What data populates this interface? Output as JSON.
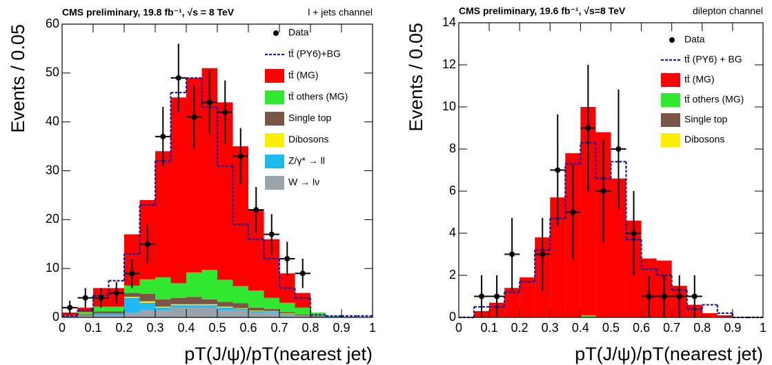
{
  "chart_data": [
    {
      "type": "histogram",
      "title": "CMS preliminary, 19.8 fb⁻¹, √s = 8 TeV",
      "subtitle": "l + jets channel",
      "x_label": "pT(J/ψ)/pT(nearest jet)",
      "y_label": "Events / 0.05",
      "bins": [
        0,
        0.05,
        0.1,
        0.15,
        0.2,
        0.25,
        0.3,
        0.35,
        0.4,
        0.45,
        0.5,
        0.55,
        0.6,
        0.65,
        0.7,
        0.75,
        0.8,
        0.85,
        0.9,
        0.95,
        1
      ],
      "xlim": [
        0,
        1
      ],
      "xticks": [
        0,
        0.1,
        0.2,
        0.3,
        0.4,
        0.5,
        0.6,
        0.7,
        0.8,
        0.9,
        1
      ],
      "ylim": [
        0,
        60
      ],
      "yticks": [
        0,
        10,
        20,
        30,
        40,
        50,
        60
      ],
      "series": [
        {
          "name": "W → lν",
          "color": "#99a4ad",
          "values": [
            0.1,
            0.3,
            0.5,
            0.5,
            1,
            1.5,
            1.5,
            2,
            2,
            2,
            1.5,
            1.5,
            1,
            1,
            0.5,
            0.3,
            0.2,
            0.1,
            0,
            0
          ]
        },
        {
          "name": "Z/γ* → ll",
          "color": "#1fb8ef",
          "values": [
            0.1,
            0.1,
            0.3,
            0.3,
            3,
            1.5,
            0.5,
            0.5,
            0.5,
            0.5,
            0.5,
            0.3,
            0.3,
            0.2,
            0.2,
            0.1,
            0,
            0,
            0,
            0
          ]
        },
        {
          "name": "Dibosons",
          "color": "#ffee00",
          "values": [
            0,
            0,
            0,
            0,
            0.2,
            0.3,
            0.2,
            0.2,
            0.2,
            0.2,
            0.2,
            0.1,
            0.1,
            0.1,
            0.1,
            0,
            0,
            0,
            0,
            0
          ]
        },
        {
          "name": "Single top",
          "color": "#7b5646",
          "values": [
            0.1,
            0.2,
            0.4,
            0.4,
            0.8,
            1.5,
            1.5,
            1.3,
            1.5,
            1,
            1,
            1,
            0.6,
            0.4,
            0.3,
            0.2,
            0.1,
            0,
            0,
            0
          ]
        },
        {
          "name": "tt̄ others (MG)",
          "color": "#2fe82f",
          "values": [
            0.1,
            0.5,
            1,
            1,
            1.5,
            3,
            4.5,
            3,
            5,
            6,
            4.5,
            3.5,
            3.5,
            2.3,
            1.9,
            1.4,
            0.7,
            0.2,
            0,
            0
          ]
        },
        {
          "name": "tt̄ (MG)",
          "color": "#ff0000",
          "values": [
            0.6,
            0.9,
            3.8,
            3.8,
            10.5,
            16.2,
            25.8,
            38,
            39.8,
            41.3,
            36.3,
            28.6,
            16.5,
            12,
            6,
            3,
            0,
            0,
            0.1,
            0
          ]
        }
      ],
      "mc_total": {
        "name": "tt̄ (PY6)+BG",
        "color": "#1a1a9c",
        "values": [
          0.3,
          1.5,
          4.5,
          7.5,
          13,
          23,
          32,
          46,
          49,
          43,
          31,
          19,
          16,
          12,
          6,
          4,
          0.5,
          0.3,
          0.3,
          0.3
        ]
      },
      "data": {
        "name": "Data",
        "color": "#000000",
        "x": [
          0.025,
          0.075,
          0.125,
          0.175,
          0.225,
          0.275,
          0.325,
          0.375,
          0.425,
          0.475,
          0.525,
          0.575,
          0.625,
          0.675,
          0.725,
          0.775
        ],
        "values": [
          2,
          4,
          4,
          5,
          9,
          15,
          37,
          49,
          41,
          44,
          42,
          33,
          22,
          17,
          12,
          9
        ],
        "errors": [
          1.41,
          2,
          2,
          2.24,
          3,
          3.87,
          6.08,
          7,
          6.4,
          6.63,
          6.48,
          5.74,
          4.69,
          4.12,
          3.46,
          3
        ]
      }
    },
    {
      "type": "histogram",
      "title": "CMS preliminary, 19.6 fb⁻¹, √s=8 TeV",
      "subtitle": "dilepton channel",
      "x_label": "pT(J/ψ)/pT(nearest jet)",
      "y_label": "Events / 0.05",
      "bins": [
        0,
        0.05,
        0.1,
        0.15,
        0.2,
        0.25,
        0.3,
        0.35,
        0.4,
        0.45,
        0.5,
        0.55,
        0.6,
        0.65,
        0.7,
        0.75,
        0.8,
        0.85,
        0.9,
        0.95,
        1
      ],
      "xlim": [
        0,
        1
      ],
      "xticks": [
        0,
        0.1,
        0.2,
        0.3,
        0.4,
        0.5,
        0.6,
        0.7,
        0.8,
        0.9,
        1
      ],
      "ylim": [
        0,
        14
      ],
      "yticks": [
        0,
        2,
        4,
        6,
        8,
        10,
        12,
        14
      ],
      "series": [
        {
          "name": "Dibosons",
          "color": "#ffee00",
          "values": [
            0,
            0,
            0,
            0,
            0,
            0,
            0,
            0,
            0,
            0,
            0,
            0,
            0,
            0,
            0,
            0,
            0,
            0,
            0,
            0
          ]
        },
        {
          "name": "Single top",
          "color": "#7b5646",
          "values": [
            0,
            0,
            0,
            0,
            0,
            0,
            0,
            0,
            0,
            0,
            0,
            0,
            0,
            0,
            0,
            0,
            0,
            0,
            0,
            0
          ]
        },
        {
          "name": "tt̄ others (MG)",
          "color": "#2fe82f",
          "values": [
            0,
            0,
            0,
            0,
            0,
            0,
            0,
            0,
            0.1,
            0,
            0,
            0,
            0,
            0,
            0,
            0,
            0,
            0,
            0,
            0
          ]
        },
        {
          "name": "tt̄ (MG)",
          "color": "#ff0000",
          "values": [
            0,
            0.3,
            0.7,
            1.4,
            1.9,
            3.8,
            5.7,
            7.8,
            9.9,
            8.8,
            6.6,
            4.6,
            2.8,
            2.7,
            1.5,
            0.6,
            0.2,
            0.1,
            0,
            0
          ]
        }
      ],
      "mc_total": {
        "name": "tt̄ (PY6) + BG",
        "color": "#1a1a9c",
        "values": [
          0,
          0.5,
          0.5,
          1.2,
          1.7,
          3.2,
          4.7,
          7.3,
          8.3,
          6.6,
          7.4,
          3.7,
          2.3,
          2,
          1.3,
          0.4,
          0.6,
          0.2,
          0,
          0
        ]
      },
      "data": {
        "name": "Data",
        "color": "#000000",
        "x": [
          0.075,
          0.125,
          0.175,
          0.275,
          0.325,
          0.375,
          0.425,
          0.475,
          0.525,
          0.575,
          0.625,
          0.675,
          0.725,
          0.775
        ],
        "values": [
          1,
          1,
          3,
          3,
          7,
          5,
          9,
          6,
          8,
          4,
          1,
          1,
          1,
          1
        ],
        "errors": [
          1,
          1,
          1.73,
          1.73,
          2.65,
          2.24,
          3,
          2.45,
          2.83,
          2,
          1,
          1,
          1,
          1
        ]
      }
    }
  ]
}
